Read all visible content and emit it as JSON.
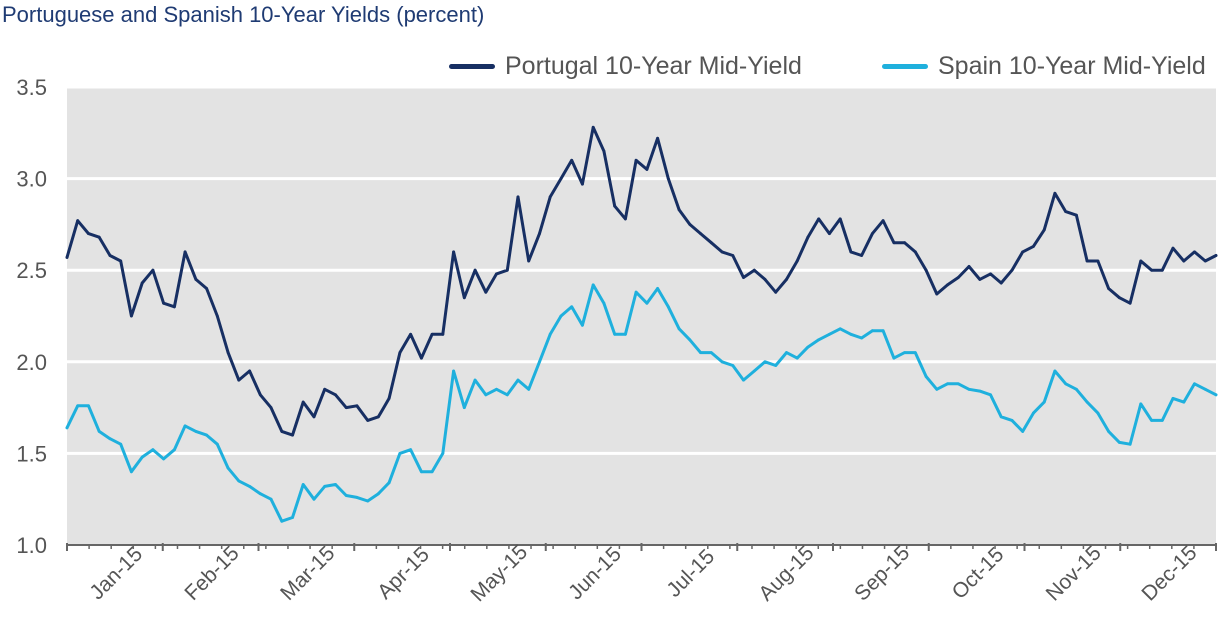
{
  "title": "Portuguese and Spanish 10-Year Yields (percent)",
  "colors": {
    "plot_bg": "#e3e3e3",
    "grid": "#ffffff",
    "axis": "#666666",
    "portugal": "#172f63",
    "spain": "#1fb0dd"
  },
  "chart_data": {
    "type": "line",
    "title": "Portuguese and Spanish 10-Year Yields (percent)",
    "xlabel": "",
    "ylabel": "",
    "ylim": [
      1.0,
      3.5
    ],
    "yticks": [
      "1.0",
      "1.5",
      "2.0",
      "2.5",
      "3.0",
      "3.5"
    ],
    "x_tick_labels": [
      "Jan-15",
      "Feb-15",
      "Mar-15",
      "Apr-15",
      "May-15",
      "Jun-15",
      "Jul-15",
      "Aug-15",
      "Sep-15",
      "Oct-15",
      "Nov-15",
      "Dec-15"
    ],
    "grid": "horizontal",
    "legend_position": "top-right",
    "points_per_series": "weekly, 2015-01-01 to 2015-12-31",
    "series": [
      {
        "name": "Portugal 10-Year Mid-Yield",
        "color": "#172f63",
        "values": [
          2.57,
          2.77,
          2.7,
          2.68,
          2.58,
          2.55,
          2.25,
          2.43,
          2.5,
          2.32,
          2.3,
          2.6,
          2.45,
          2.4,
          2.25,
          2.05,
          1.9,
          1.95,
          1.82,
          1.75,
          1.62,
          1.6,
          1.78,
          1.7,
          1.85,
          1.82,
          1.75,
          1.76,
          1.68,
          1.7,
          1.8,
          2.05,
          2.15,
          2.02,
          2.15,
          2.15,
          2.6,
          2.35,
          2.5,
          2.38,
          2.48,
          2.5,
          2.9,
          2.55,
          2.7,
          2.9,
          3.0,
          3.1,
          2.97,
          3.28,
          3.15,
          2.85,
          2.78,
          3.1,
          3.05,
          3.22,
          3.0,
          2.83,
          2.75,
          2.7,
          2.65,
          2.6,
          2.58,
          2.46,
          2.5,
          2.45,
          2.38,
          2.45,
          2.55,
          2.68,
          2.78,
          2.7,
          2.78,
          2.6,
          2.58,
          2.7,
          2.77,
          2.65,
          2.65,
          2.6,
          2.5,
          2.37,
          2.42,
          2.46,
          2.52,
          2.45,
          2.48,
          2.43,
          2.5,
          2.6,
          2.63,
          2.72,
          2.92,
          2.82,
          2.8,
          2.55,
          2.55,
          2.4,
          2.35,
          2.32,
          2.55,
          2.5,
          2.5,
          2.62,
          2.55,
          2.6,
          2.55,
          2.58
        ]
      },
      {
        "name": "Spain 10-Year Mid-Yield",
        "color": "#1fb0dd",
        "values": [
          1.64,
          1.76,
          1.76,
          1.62,
          1.58,
          1.55,
          1.4,
          1.48,
          1.52,
          1.47,
          1.52,
          1.65,
          1.62,
          1.6,
          1.55,
          1.42,
          1.35,
          1.32,
          1.28,
          1.25,
          1.13,
          1.15,
          1.33,
          1.25,
          1.32,
          1.33,
          1.27,
          1.26,
          1.24,
          1.28,
          1.34,
          1.5,
          1.52,
          1.4,
          1.4,
          1.5,
          1.95,
          1.75,
          1.9,
          1.82,
          1.85,
          1.82,
          1.9,
          1.85,
          2.0,
          2.15,
          2.25,
          2.3,
          2.2,
          2.42,
          2.32,
          2.15,
          2.15,
          2.38,
          2.32,
          2.4,
          2.3,
          2.18,
          2.12,
          2.05,
          2.05,
          2.0,
          1.98,
          1.9,
          1.95,
          2.0,
          1.98,
          2.05,
          2.02,
          2.08,
          2.12,
          2.15,
          2.18,
          2.15,
          2.13,
          2.17,
          2.17,
          2.02,
          2.05,
          2.05,
          1.92,
          1.85,
          1.88,
          1.88,
          1.85,
          1.84,
          1.82,
          1.7,
          1.68,
          1.62,
          1.72,
          1.78,
          1.95,
          1.88,
          1.85,
          1.78,
          1.72,
          1.62,
          1.56,
          1.55,
          1.77,
          1.68,
          1.68,
          1.8,
          1.78,
          1.88,
          1.85,
          1.82
        ]
      }
    ]
  }
}
